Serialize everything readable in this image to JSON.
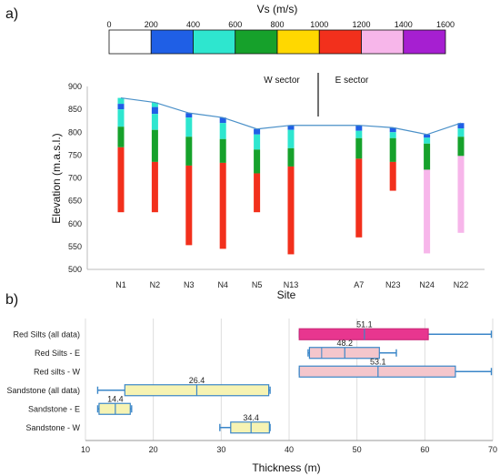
{
  "panels": {
    "a": "a)",
    "b": "b)"
  },
  "colorbar": {
    "title": "Vs (m/s)",
    "ticks": [
      "0",
      "200",
      "400",
      "600",
      "800",
      "1000",
      "1200",
      "1400",
      "1600"
    ],
    "colors": [
      "#ffffff",
      "#1f5fe6",
      "#2ee6cf",
      "#16a12b",
      "#ffd800",
      "#f2301c",
      "#f7b6ea",
      "#a61fd1"
    ]
  },
  "chart_data": [
    {
      "type": "bar",
      "title": "",
      "xlabel": "Site",
      "ylabel": "Elevation (m.a.s.l.)",
      "ylim": [
        500,
        900
      ],
      "yticks": [
        "500",
        "550",
        "600",
        "650",
        "700",
        "750",
        "800",
        "850",
        "900"
      ],
      "sectors": {
        "west": "W sector",
        "east": "E sector"
      },
      "sites": [
        {
          "name": "N1",
          "top": 875,
          "layers": [
            [
              875,
              862,
              "#2ee6cf"
            ],
            [
              862,
              850,
              "#1f5fe6"
            ],
            [
              850,
              812,
              "#2ee6cf"
            ],
            [
              812,
              767,
              "#16a12b"
            ],
            [
              767,
              625,
              "#f2301c"
            ]
          ]
        },
        {
          "name": "N2",
          "top": 865,
          "layers": [
            [
              865,
              855,
              "#2ee6cf"
            ],
            [
              855,
              840,
              "#1f5fe6"
            ],
            [
              840,
              805,
              "#2ee6cf"
            ],
            [
              805,
              735,
              "#16a12b"
            ],
            [
              735,
              625,
              "#f2301c"
            ]
          ]
        },
        {
          "name": "N3",
          "top": 842,
          "layers": [
            [
              842,
              832,
              "#1f5fe6"
            ],
            [
              832,
              790,
              "#2ee6cf"
            ],
            [
              790,
              727,
              "#16a12b"
            ],
            [
              727,
              553,
              "#f2301c"
            ]
          ]
        },
        {
          "name": "N4",
          "top": 832,
          "layers": [
            [
              832,
              820,
              "#1f5fe6"
            ],
            [
              820,
              785,
              "#2ee6cf"
            ],
            [
              785,
              733,
              "#16a12b"
            ],
            [
              733,
              545,
              "#f2301c"
            ]
          ]
        },
        {
          "name": "N5",
          "top": 807,
          "layers": [
            [
              807,
              795,
              "#1f5fe6"
            ],
            [
              795,
              762,
              "#2ee6cf"
            ],
            [
              762,
              710,
              "#16a12b"
            ],
            [
              710,
              625,
              "#f2301c"
            ]
          ]
        },
        {
          "name": "N13",
          "top": 815,
          "layers": [
            [
              815,
              805,
              "#1f5fe6"
            ],
            [
              805,
              765,
              "#2ee6cf"
            ],
            [
              765,
              725,
              "#16a12b"
            ],
            [
              725,
              533,
              "#f2301c"
            ]
          ]
        },
        {
          "name": "A7",
          "top": 815,
          "layers": [
            [
              815,
              803,
              "#1f5fe6"
            ],
            [
              803,
              787,
              "#2ee6cf"
            ],
            [
              787,
              742,
              "#16a12b"
            ],
            [
              742,
              570,
              "#f2301c"
            ]
          ]
        },
        {
          "name": "N23",
          "top": 810,
          "layers": [
            [
              810,
              800,
              "#1f5fe6"
            ],
            [
              800,
              787,
              "#2ee6cf"
            ],
            [
              787,
              735,
              "#16a12b"
            ],
            [
              735,
              672,
              "#f2301c"
            ]
          ]
        },
        {
          "name": "N24",
          "top": 795,
          "layers": [
            [
              795,
              788,
              "#1f5fe6"
            ],
            [
              788,
              775,
              "#2ee6cf"
            ],
            [
              775,
              718,
              "#16a12b"
            ],
            [
              718,
              535,
              "#f7b6ea"
            ]
          ]
        },
        {
          "name": "N22",
          "top": 820,
          "layers": [
            [
              820,
              808,
              "#1f5fe6"
            ],
            [
              808,
              790,
              "#2ee6cf"
            ],
            [
              790,
              748,
              "#16a12b"
            ],
            [
              748,
              580,
              "#f7b6ea"
            ]
          ]
        }
      ]
    },
    {
      "type": "box",
      "title": "",
      "xlabel": "Thickness (m)",
      "ylabel": "",
      "xlim": [
        10,
        70
      ],
      "xticks": [
        "10",
        "20",
        "30",
        "40",
        "50",
        "60",
        "70"
      ],
      "series": [
        {
          "name": "Red Silts (all data)",
          "min": 41.5,
          "q1": 41.5,
          "median": 51.1,
          "q3": 60.5,
          "max": 69.8,
          "mean": 51.1,
          "fill": "#e8368f",
          "stroke": "#cc2a7a",
          "label": "51.1"
        },
        {
          "name": "Red Silts - E",
          "min": 42.8,
          "q1": 43.0,
          "median": 48.2,
          "q3": 53.3,
          "max": 55.8,
          "mean": 44.8,
          "fill": "#f4c6cc",
          "stroke": "#3a86c8",
          "label": "48.2"
        },
        {
          "name": "Red silts - W",
          "min": 41.5,
          "q1": 41.5,
          "median": 53.1,
          "q3": 64.5,
          "max": 69.8,
          "mean": 53.1,
          "fill": "#f4c6cc",
          "stroke": "#3a86c8",
          "label": "53.1"
        },
        {
          "name": "Sandstone (all data)",
          "min": 11.8,
          "q1": 15.8,
          "median": 26.4,
          "q3": 37.0,
          "max": 37.2,
          "mean": 26.4,
          "fill": "#f6f3b3",
          "stroke": "#3a86c8",
          "label": "26.4"
        },
        {
          "name": "Sandstone - E",
          "min": 11.8,
          "q1": 12.0,
          "median": 14.4,
          "q3": 16.6,
          "max": 16.8,
          "mean": 14.4,
          "fill": "#f6f3b3",
          "stroke": "#3a86c8",
          "label": "14.4"
        },
        {
          "name": "Sandstone - W",
          "min": 29.8,
          "q1": 31.4,
          "median": 34.4,
          "q3": 37.1,
          "max": 37.2,
          "mean": 34.4,
          "fill": "#f6f3b3",
          "stroke": "#3a86c8",
          "label": "34.4"
        }
      ]
    }
  ]
}
